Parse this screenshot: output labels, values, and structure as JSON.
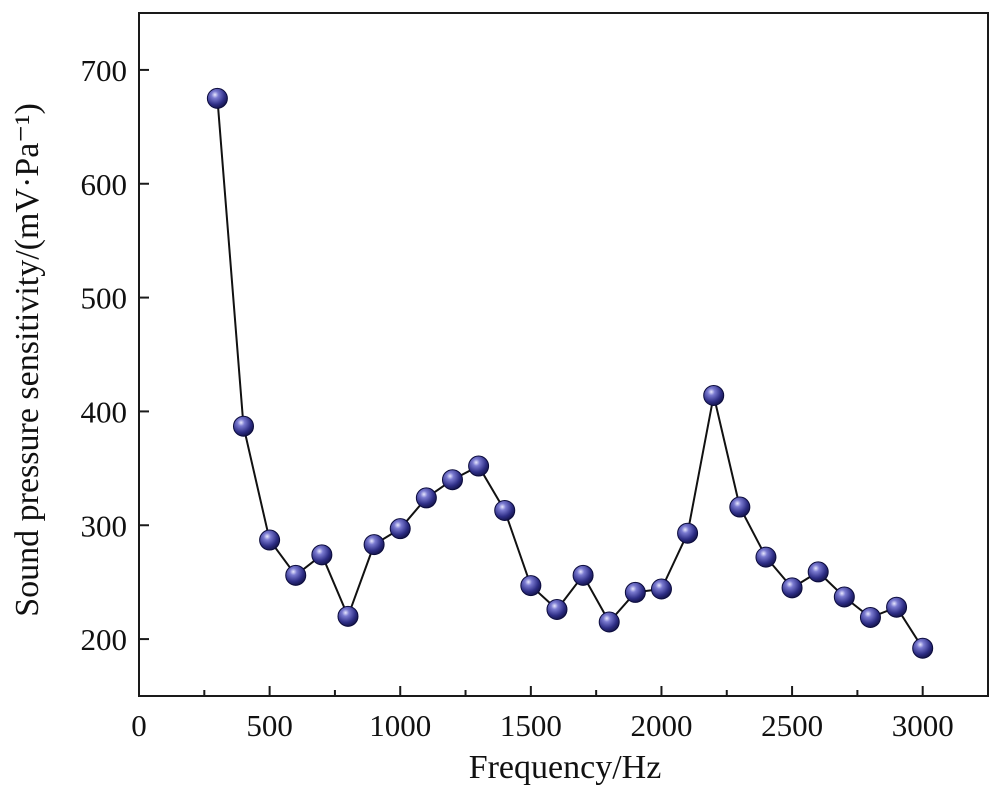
{
  "chart_data": {
    "type": "line",
    "title": "",
    "xlabel": "Frequency/Hz",
    "ylabel": "Sound pressure sensitivity/(mV·Pa⁻¹)",
    "xlim": [
      0,
      3250
    ],
    "ylim": [
      150,
      750
    ],
    "x_ticks": [
      0,
      500,
      1000,
      1500,
      2000,
      2500,
      3000
    ],
    "x_tick_labels": [
      "0",
      "500",
      "1000",
      "1500",
      "2000",
      "2500",
      "3000"
    ],
    "x_minor_ticks": [
      250,
      750,
      1250,
      1750,
      2250,
      2750
    ],
    "y_ticks": [
      200,
      300,
      400,
      500,
      600,
      700
    ],
    "y_tick_labels": [
      "200",
      "300",
      "400",
      "500",
      "600",
      "700"
    ],
    "grid": false,
    "series": [
      {
        "name": "Sensitivity",
        "color": "#3a3a8c",
        "x": [
          300,
          400,
          500,
          600,
          700,
          800,
          900,
          1000,
          1100,
          1200,
          1300,
          1400,
          1500,
          1600,
          1700,
          1800,
          1900,
          2000,
          2100,
          2200,
          2300,
          2400,
          2500,
          2600,
          2700,
          2800,
          2900,
          3000
        ],
        "values": [
          675,
          387,
          287,
          256,
          274,
          220,
          283,
          297,
          324,
          340,
          352,
          313,
          247,
          226,
          256,
          215,
          241,
          244,
          293,
          414,
          316,
          272,
          245,
          259,
          237,
          219,
          228,
          192
        ]
      }
    ]
  }
}
